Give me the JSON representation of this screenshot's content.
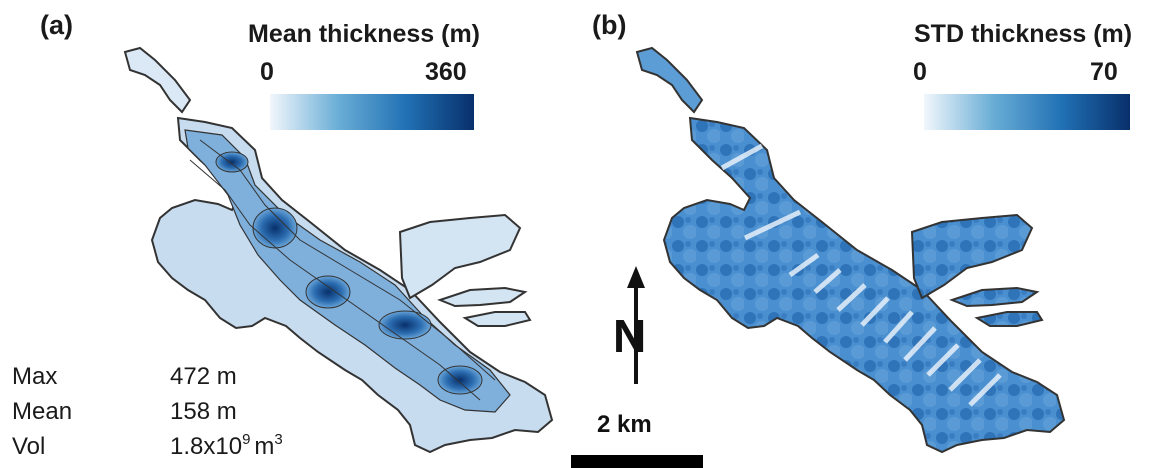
{
  "panel_a": {
    "label": "(a)",
    "colorbar": {
      "title": "Mean thickness (m)",
      "min": "0",
      "max": "360",
      "color_low": "#f2f7fc",
      "color_high": "#08306b"
    },
    "stats": [
      {
        "label": "Max",
        "value": "472 m"
      },
      {
        "label": "Mean",
        "value": "158 m"
      },
      {
        "label": "Vol",
        "value_base": "1.8x10",
        "value_exp": "9",
        "value_unit": "m",
        "value_unit_exp": "3"
      }
    ]
  },
  "panel_b": {
    "label": "(b)",
    "colorbar": {
      "title": "STD thickness (m)",
      "min": "0",
      "max": "70",
      "color_low": "#f2f7fc",
      "color_high": "#08306b"
    }
  },
  "north_arrow": {
    "letter": "N"
  },
  "scale_bar": {
    "label": "2 km"
  }
}
